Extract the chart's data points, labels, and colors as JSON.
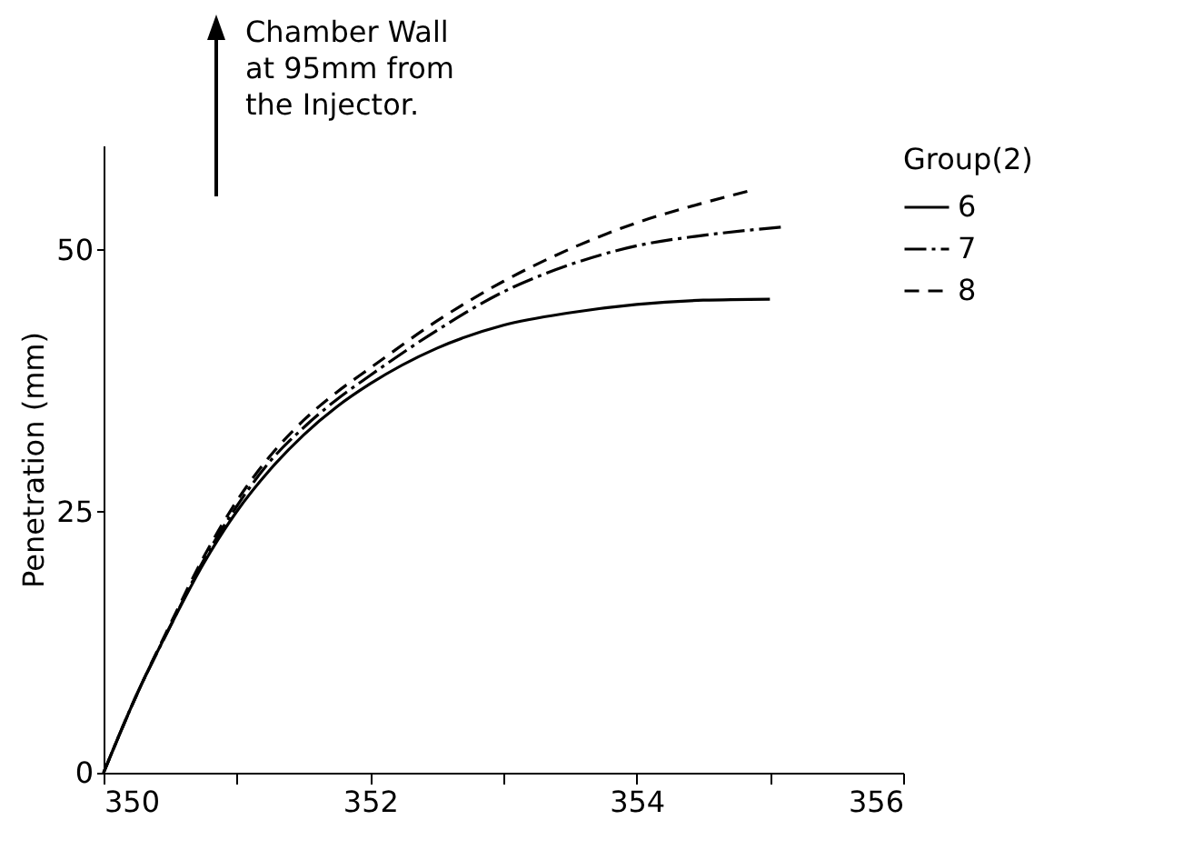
{
  "chart_data": {
    "type": "line",
    "ylabel": "Penetration (mm)",
    "legend_title": "Group(2)",
    "legend": "right",
    "xlim": [
      350,
      356
    ],
    "xticks": [
      350,
      {
        "value": 351,
        "label": null
      },
      352,
      {
        "value": 353,
        "label": null
      },
      354,
      {
        "value": 355,
        "label": null
      },
      356
    ],
    "ylim": [
      0,
      60
    ],
    "yticks": [
      0,
      25,
      50
    ],
    "grid": false,
    "annotations": [
      "Chamber Wall at 95mm from the Injector."
    ],
    "series": [
      {
        "name": "6",
        "color": "#000000",
        "line_style": "solid",
        "x": [
          350,
          350.25,
          350.5,
          350.75,
          351,
          351.25,
          351.5,
          351.75,
          352,
          352.5,
          353,
          353.5,
          354,
          354.5,
          355
        ],
        "values": [
          0,
          7.5,
          14,
          20,
          25,
          29,
          32.3,
          35,
          37.2,
          40.6,
          42.8,
          44,
          44.8,
          45.2,
          45.3
        ]
      },
      {
        "name": "7",
        "color": "#000000",
        "line_style": "dashdot",
        "x": [
          350,
          350.25,
          350.5,
          350.75,
          351,
          351.25,
          351.5,
          351.75,
          352,
          352.5,
          353,
          353.5,
          354,
          354.5,
          355.1
        ],
        "values": [
          0,
          7.5,
          14,
          20.3,
          25.5,
          29.8,
          33,
          35.7,
          38,
          42.3,
          46,
          48.6,
          50.4,
          51.4,
          52.2
        ]
      },
      {
        "name": "8",
        "color": "#000000",
        "line_style": "dashed",
        "x": [
          350,
          350.25,
          350.5,
          350.75,
          351,
          351.25,
          351.5,
          351.75,
          352,
          352.5,
          353,
          353.5,
          354,
          354.5,
          354.86
        ],
        "values": [
          0,
          7.5,
          14.2,
          20.6,
          26,
          30.3,
          33.7,
          36.4,
          38.7,
          43.2,
          47,
          50.1,
          52.6,
          54.5,
          55.7
        ]
      }
    ]
  }
}
